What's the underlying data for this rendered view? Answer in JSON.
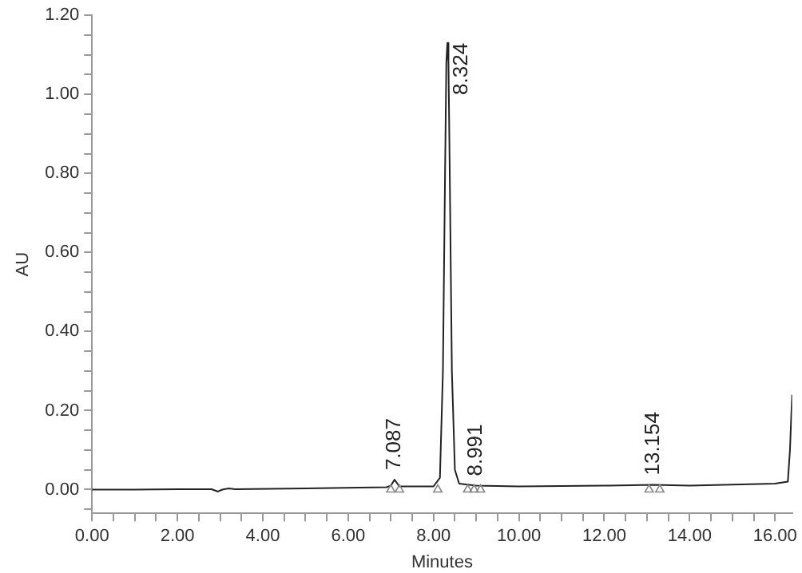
{
  "chart_data": {
    "type": "line",
    "xlabel": "Minutes",
    "ylabel": "AU",
    "xlim": [
      0,
      16.4
    ],
    "ylim": [
      -0.06,
      1.2
    ],
    "xticks": [
      {
        "value": 0,
        "label": "0.00"
      },
      {
        "value": 0.5,
        "label": null
      },
      {
        "value": 1,
        "label": null
      },
      {
        "value": 1.5,
        "label": null
      },
      {
        "value": 2,
        "label": "2.00"
      },
      {
        "value": 2.5,
        "label": null
      },
      {
        "value": 3,
        "label": null
      },
      {
        "value": 3.5,
        "label": null
      },
      {
        "value": 4,
        "label": "4.00"
      },
      {
        "value": 4.5,
        "label": null
      },
      {
        "value": 5,
        "label": null
      },
      {
        "value": 5.5,
        "label": null
      },
      {
        "value": 6,
        "label": "6.00"
      },
      {
        "value": 6.5,
        "label": null
      },
      {
        "value": 7,
        "label": null
      },
      {
        "value": 7.5,
        "label": null
      },
      {
        "value": 8,
        "label": "8.00"
      },
      {
        "value": 8.5,
        "label": null
      },
      {
        "value": 9,
        "label": null
      },
      {
        "value": 9.5,
        "label": null
      },
      {
        "value": 10,
        "label": "10.00"
      },
      {
        "value": 10.5,
        "label": null
      },
      {
        "value": 11,
        "label": null
      },
      {
        "value": 11.5,
        "label": null
      },
      {
        "value": 12,
        "label": "12.00"
      },
      {
        "value": 12.5,
        "label": null
      },
      {
        "value": 13,
        "label": null
      },
      {
        "value": 13.5,
        "label": null
      },
      {
        "value": 14,
        "label": "14.00"
      },
      {
        "value": 14.5,
        "label": null
      },
      {
        "value": 15,
        "label": null
      },
      {
        "value": 15.5,
        "label": null
      },
      {
        "value": 16,
        "label": "16.00"
      }
    ],
    "yticks": [
      {
        "value": -0.05,
        "label": null
      },
      {
        "value": 0,
        "label": "0.00"
      },
      {
        "value": 0.05,
        "label": null
      },
      {
        "value": 0.1,
        "label": null
      },
      {
        "value": 0.15,
        "label": null
      },
      {
        "value": 0.2,
        "label": "0.20"
      },
      {
        "value": 0.25,
        "label": null
      },
      {
        "value": 0.3,
        "label": null
      },
      {
        "value": 0.35,
        "label": null
      },
      {
        "value": 0.4,
        "label": "0.40"
      },
      {
        "value": 0.45,
        "label": null
      },
      {
        "value": 0.5,
        "label": null
      },
      {
        "value": 0.55,
        "label": null
      },
      {
        "value": 0.6,
        "label": "0.60"
      },
      {
        "value": 0.65,
        "label": null
      },
      {
        "value": 0.7,
        "label": null
      },
      {
        "value": 0.75,
        "label": null
      },
      {
        "value": 0.8,
        "label": "0.80"
      },
      {
        "value": 0.85,
        "label": null
      },
      {
        "value": 0.9,
        "label": null
      },
      {
        "value": 0.95,
        "label": null
      },
      {
        "value": 1,
        "label": "1.00"
      },
      {
        "value": 1.05,
        "label": null
      },
      {
        "value": 1.1,
        "label": null
      },
      {
        "value": 1.15,
        "label": null
      },
      {
        "value": 1.2,
        "label": "1.20"
      }
    ],
    "grid": false,
    "legend": false,
    "series": [
      {
        "color": "#222222",
        "x": [
          0,
          1,
          2,
          2.8,
          2.95,
          3.05,
          3.2,
          3.35,
          5,
          6.9,
          7,
          7.087,
          7.2,
          8,
          8.15,
          8.22,
          8.27,
          8.3,
          8.324,
          8.35,
          8.38,
          8.43,
          8.5,
          8.6,
          8.991,
          10,
          12,
          13.154,
          14,
          16,
          16.3,
          16.35,
          16.4
        ],
        "values": [
          0,
          0,
          0.001,
          0.001,
          -0.005,
          0,
          0.003,
          0.001,
          0.003,
          0.006,
          0.01,
          0.025,
          0.008,
          0.008,
          0.03,
          0.3,
          0.8,
          1.08,
          1.13,
          1.08,
          0.8,
          0.3,
          0.05,
          0.015,
          0.01,
          0.008,
          0.01,
          0.012,
          0.01,
          0.015,
          0.02,
          0.1,
          0.24
        ]
      },
      {
        "type": "scatter",
        "marker": "triangle",
        "color": "#888888",
        "x": [
          7,
          7.2,
          8.1,
          8.8,
          8.95,
          9.1,
          13.05,
          13.3
        ],
        "values": [
          0,
          0,
          0,
          0,
          0,
          0,
          0,
          0
        ]
      }
    ],
    "annotations": [
      {
        "text": "7.087",
        "x": 7.087,
        "y": 0.025
      },
      {
        "text": "8.324",
        "x": 8.324,
        "y": 1.13
      },
      {
        "text": "8.991",
        "x": 8.991,
        "y": 0.01
      },
      {
        "text": "13.154",
        "x": 13.154,
        "y": 0.012
      }
    ]
  }
}
